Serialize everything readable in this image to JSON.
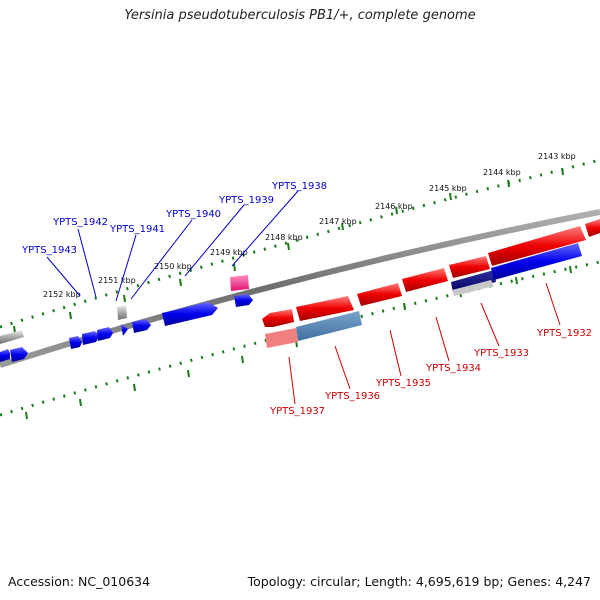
{
  "title": "Yersinia pseudotuberculosis PB1/+, complete genome",
  "footer": {
    "accession": "Accession: NC_010634",
    "summary": "Topology: circular; Length: 4,695,619 bp; Genes: 4,247"
  },
  "colors": {
    "forward_strand": "#0000ee",
    "reverse_strand": "#ee0000",
    "backbone": "#7f7f7f",
    "tick": "#1a7a1a"
  },
  "scale_labels": [
    "2143 kbp",
    "2144 kbp",
    "2145 kbp",
    "2146 kbp",
    "2147 kbp",
    "2148 kbp",
    "2149 kbp",
    "2150 kbp",
    "2151 kbp",
    "2152 kbp"
  ],
  "forward_genes": [
    "YPTS_1943",
    "YPTS_1942",
    "YPTS_1941",
    "YPTS_1940",
    "YPTS_1939",
    "YPTS_1938"
  ],
  "reverse_genes": [
    "YPTS_1937",
    "YPTS_1936",
    "YPTS_1935",
    "YPTS_1934",
    "YPTS_1933",
    "YPTS_1932"
  ]
}
